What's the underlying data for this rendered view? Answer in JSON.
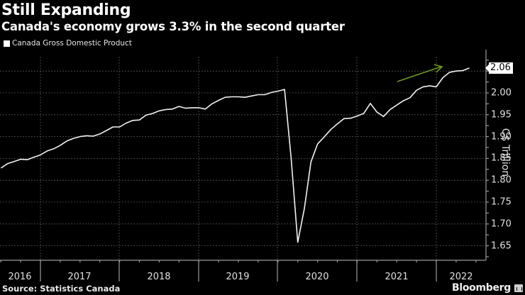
{
  "header": {
    "title": "Still Expanding",
    "subtitle": "Canada's economy grows 3.3% in the second quarter"
  },
  "legend": {
    "label": "Canada Gross Domestic Product",
    "color": "#ffffff"
  },
  "axis": {
    "y_label": "C$ Trillion",
    "y_ticks": [
      "2.00",
      "1.95",
      "1.90",
      "1.85",
      "1.80",
      "1.75",
      "1.70",
      "1.65"
    ],
    "x_ticks": [
      "2016",
      "2017",
      "2018",
      "2019",
      "2020",
      "2021",
      "2022"
    ],
    "last_value": "2.06"
  },
  "footer": {
    "source": "Source: Statistics Canada",
    "brand": "Bloomberg"
  },
  "annotation": {
    "arrow_color": "#6a9a1f"
  },
  "chart_data": {
    "type": "line",
    "title": "Still Expanding",
    "subtitle": "Canada's economy grows 3.3% in the second quarter",
    "xlabel": "",
    "ylabel": "C$ Trillion",
    "ylim": [
      1.63,
      2.08
    ],
    "grid": true,
    "legend_position": "top-left",
    "series": [
      {
        "name": "Canada Gross Domestic Product",
        "x": [
          "2016-07",
          "2016-08",
          "2016-09",
          "2016-10",
          "2016-11",
          "2016-12",
          "2017-01",
          "2017-02",
          "2017-03",
          "2017-04",
          "2017-05",
          "2017-06",
          "2017-07",
          "2017-08",
          "2017-09",
          "2017-10",
          "2017-11",
          "2017-12",
          "2018-01",
          "2018-02",
          "2018-03",
          "2018-04",
          "2018-05",
          "2018-06",
          "2018-07",
          "2018-08",
          "2018-09",
          "2018-10",
          "2018-11",
          "2018-12",
          "2019-01",
          "2019-02",
          "2019-03",
          "2019-04",
          "2019-05",
          "2019-06",
          "2019-07",
          "2019-08",
          "2019-09",
          "2019-10",
          "2019-11",
          "2019-12",
          "2020-01",
          "2020-02",
          "2020-03",
          "2020-04",
          "2020-05",
          "2020-06",
          "2020-07",
          "2020-08",
          "2020-09",
          "2020-10",
          "2020-11",
          "2020-12",
          "2021-01",
          "2021-02",
          "2021-03",
          "2021-04",
          "2021-05",
          "2021-06",
          "2021-07",
          "2021-08",
          "2021-09",
          "2021-10",
          "2021-11",
          "2021-12",
          "2022-01",
          "2022-02",
          "2022-03",
          "2022-04",
          "2022-05",
          "2022-06"
        ],
        "values": [
          1.828,
          1.838,
          1.843,
          1.848,
          1.847,
          1.853,
          1.858,
          1.867,
          1.872,
          1.88,
          1.89,
          1.896,
          1.9,
          1.902,
          1.901,
          1.906,
          1.914,
          1.922,
          1.922,
          1.931,
          1.937,
          1.938,
          1.949,
          1.953,
          1.959,
          1.962,
          1.963,
          1.969,
          1.965,
          1.966,
          1.966,
          1.963,
          1.975,
          1.983,
          1.99,
          1.991,
          1.991,
          1.99,
          1.993,
          1.996,
          1.996,
          2.001,
          2.004,
          2.008,
          1.85,
          1.658,
          1.735,
          1.842,
          1.883,
          1.899,
          1.916,
          1.929,
          1.941,
          1.942,
          1.947,
          1.953,
          1.976,
          1.956,
          1.946,
          1.962,
          1.972,
          1.982,
          1.989,
          2.006,
          2.014,
          2.016,
          2.014,
          2.035,
          2.047,
          2.05,
          2.051,
          2.057
        ]
      }
    ],
    "annotations": [
      {
        "type": "arrow",
        "color": "#6a9a1f",
        "direction": "up-right"
      },
      {
        "type": "last-value-label",
        "value": 2.06
      }
    ]
  }
}
